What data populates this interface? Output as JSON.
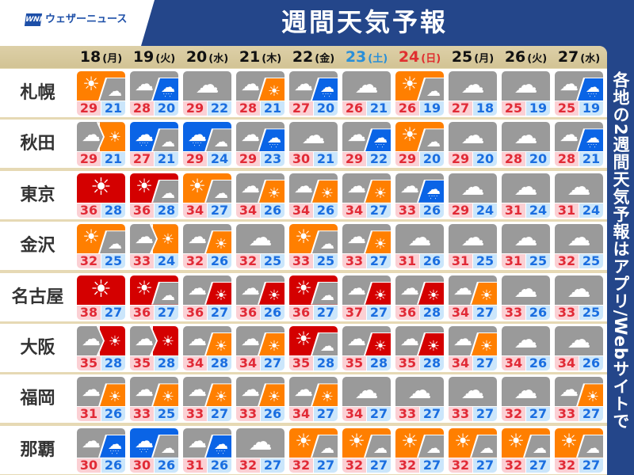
{
  "header": {
    "logo_mark": "WNI",
    "logo_text": "ウェザーニュース",
    "title": "週間天気予報"
  },
  "side_note": "各地の2週間天気予報はアプリ/Webサイトで",
  "colors": {
    "navy": "#24468a",
    "sun": "#ff7f00",
    "hot": "#d40000",
    "cloud": "#9a9a9a",
    "rain": "#0a64e6",
    "max": "#e12a36",
    "min": "#1a6ee0",
    "saturday": "#2a8fd8",
    "sunday": "#e03030"
  },
  "legend_note": "weather codes: A/B = A occasionally B (slash), A>B = A later B (arrow)",
  "dates": [
    {
      "day": "18",
      "wd": "(月)",
      "kind": "weekday"
    },
    {
      "day": "19",
      "wd": "(火)",
      "kind": "weekday"
    },
    {
      "day": "20",
      "wd": "(水)",
      "kind": "weekday"
    },
    {
      "day": "21",
      "wd": "(木)",
      "kind": "weekday"
    },
    {
      "day": "22",
      "wd": "(金)",
      "kind": "weekday"
    },
    {
      "day": "23",
      "wd": "(土)",
      "kind": "sat"
    },
    {
      "day": "24",
      "wd": "(日)",
      "kind": "sun"
    },
    {
      "day": "25",
      "wd": "(月)",
      "kind": "weekday"
    },
    {
      "day": "26",
      "wd": "(火)",
      "kind": "weekday"
    },
    {
      "day": "27",
      "wd": "(水)",
      "kind": "weekday"
    }
  ],
  "rows": [
    {
      "city": "札幌",
      "days": [
        [
          "sun/cloud",
          29,
          21
        ],
        [
          "cloud/rain",
          28,
          20
        ],
        [
          "cloud",
          29,
          22
        ],
        [
          "cloud/sun",
          28,
          21
        ],
        [
          "cloud/rain",
          27,
          20
        ],
        [
          "cloud",
          26,
          21
        ],
        [
          "sun/cloud",
          26,
          19
        ],
        [
          "cloud",
          27,
          18
        ],
        [
          "cloud",
          25,
          19
        ],
        [
          "cloud/rain",
          25,
          19
        ]
      ]
    },
    {
      "city": "秋田",
      "days": [
        [
          "cloud>sun",
          29,
          21
        ],
        [
          "rain/cloud",
          27,
          21
        ],
        [
          "rain/cloud",
          29,
          24
        ],
        [
          "cloud/rain",
          29,
          23
        ],
        [
          "cloud",
          30,
          21
        ],
        [
          "cloud/rain",
          29,
          22
        ],
        [
          "sun/cloud",
          29,
          20
        ],
        [
          "cloud",
          29,
          20
        ],
        [
          "cloud",
          28,
          20
        ],
        [
          "cloud/rain",
          28,
          21
        ]
      ]
    },
    {
      "city": "東京",
      "days": [
        [
          "hot",
          36,
          28
        ],
        [
          "hot/cloud",
          36,
          28
        ],
        [
          "sun/cloud",
          34,
          27
        ],
        [
          "cloud/sun",
          34,
          26
        ],
        [
          "cloud/sun",
          34,
          26
        ],
        [
          "cloud/sun",
          34,
          27
        ],
        [
          "cloud/rain",
          33,
          26
        ],
        [
          "cloud",
          29,
          24
        ],
        [
          "cloud",
          31,
          24
        ],
        [
          "cloud",
          31,
          24
        ]
      ]
    },
    {
      "city": "金沢",
      "days": [
        [
          "sun/cloud",
          32,
          25
        ],
        [
          "cloud>sun",
          33,
          24
        ],
        [
          "cloud/sun",
          32,
          26
        ],
        [
          "cloud",
          32,
          25
        ],
        [
          "sun/cloud",
          33,
          25
        ],
        [
          "cloud/sun",
          33,
          27
        ],
        [
          "cloud",
          31,
          26
        ],
        [
          "cloud",
          31,
          25
        ],
        [
          "cloud",
          31,
          25
        ],
        [
          "cloud",
          32,
          25
        ]
      ]
    },
    {
      "city": "名古屋",
      "days": [
        [
          "hot",
          38,
          27
        ],
        [
          "hot/cloud",
          36,
          27
        ],
        [
          "cloud/hot",
          36,
          27
        ],
        [
          "cloud/hot",
          36,
          26
        ],
        [
          "hot/cloud",
          36,
          27
        ],
        [
          "cloud/hot",
          37,
          27
        ],
        [
          "cloud/hot",
          36,
          28
        ],
        [
          "cloud/sun",
          34,
          27
        ],
        [
          "cloud",
          33,
          26
        ],
        [
          "cloud",
          33,
          25
        ]
      ]
    },
    {
      "city": "大阪",
      "days": [
        [
          "cloud>hot",
          35,
          28
        ],
        [
          "cloud>hot",
          35,
          28
        ],
        [
          "cloud/sun",
          34,
          28
        ],
        [
          "cloud/sun",
          34,
          27
        ],
        [
          "hot/cloud",
          35,
          28
        ],
        [
          "cloud/hot",
          35,
          28
        ],
        [
          "cloud/hot",
          35,
          28
        ],
        [
          "cloud/sun",
          34,
          27
        ],
        [
          "cloud",
          34,
          26
        ],
        [
          "cloud",
          34,
          26
        ]
      ]
    },
    {
      "city": "福岡",
      "days": [
        [
          "cloud/sun",
          31,
          26
        ],
        [
          "cloud/sun",
          33,
          25
        ],
        [
          "cloud/sun",
          33,
          27
        ],
        [
          "cloud/sun",
          33,
          26
        ],
        [
          "cloud/sun",
          34,
          27
        ],
        [
          "cloud",
          34,
          27
        ],
        [
          "cloud",
          33,
          27
        ],
        [
          "cloud",
          33,
          27
        ],
        [
          "cloud",
          32,
          27
        ],
        [
          "cloud/sun",
          33,
          27
        ]
      ]
    },
    {
      "city": "那覇",
      "days": [
        [
          "cloud/rain",
          30,
          26
        ],
        [
          "rain/cloud",
          30,
          26
        ],
        [
          "cloud/rain",
          31,
          26
        ],
        [
          "cloud",
          32,
          27
        ],
        [
          "sun/cloud",
          32,
          27
        ],
        [
          "sun/cloud",
          32,
          27
        ],
        [
          "sun/cloud",
          32,
          27
        ],
        [
          "sun/cloud",
          32,
          27
        ],
        [
          "sun/cloud",
          32,
          27
        ],
        [
          "sun/cloud",
          32,
          27
        ]
      ]
    }
  ]
}
